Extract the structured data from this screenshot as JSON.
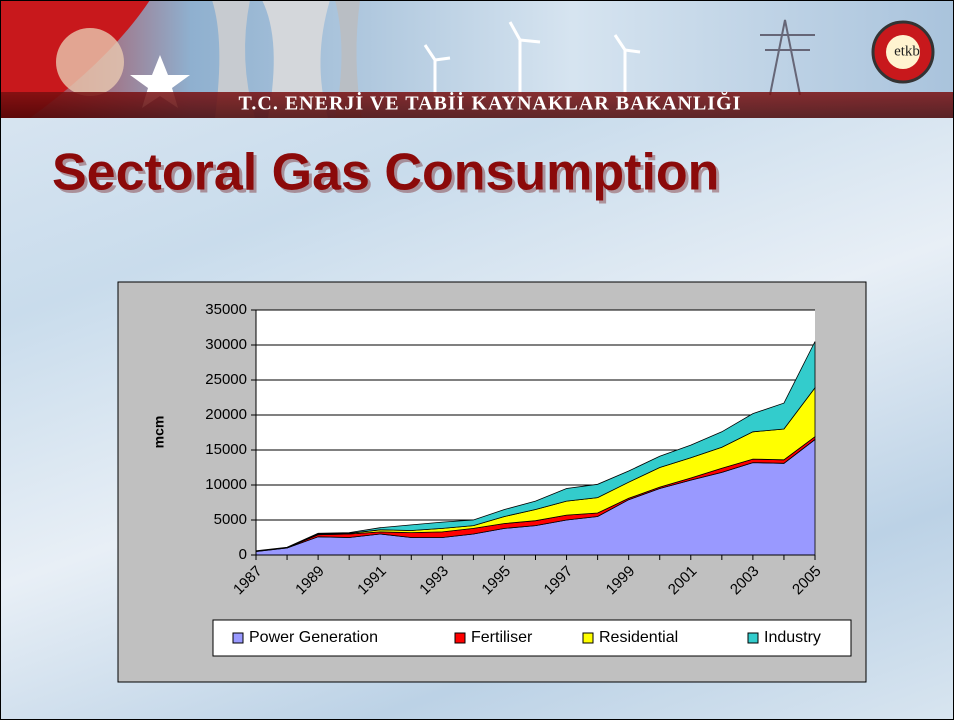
{
  "banner": {
    "title": "T.C. ENERJİ VE TABİİ KAYNAKLAR BAKANLIĞI",
    "logo": "etkb"
  },
  "slide_title": "Sectoral Gas Consumption",
  "chart_data": {
    "type": "stacked-area",
    "y_label": "mcm",
    "categories": [
      "1987",
      null,
      "1989",
      null,
      "1991",
      null,
      "1993",
      null,
      "1995",
      null,
      "1997",
      null,
      "1999",
      null,
      "2001",
      null,
      "2003",
      null,
      "2005"
    ],
    "series": [
      {
        "name": "Power Generation",
        "color": "#9999ff",
        "values": [
          500,
          1000,
          2600,
          2500,
          3000,
          2500,
          2500,
          3000,
          3800,
          4200,
          5000,
          5500,
          7900,
          9500,
          10700,
          11800,
          13200,
          13100,
          16500
        ]
      },
      {
        "name": "Fertiliser",
        "color": "#ff0000",
        "values": [
          50,
          50,
          300,
          500,
          300,
          700,
          800,
          800,
          700,
          700,
          700,
          500,
          200,
          200,
          300,
          600,
          500,
          500,
          400
        ]
      },
      {
        "name": "Residential",
        "color": "#ffff00",
        "values": [
          0,
          0,
          100,
          100,
          300,
          300,
          500,
          400,
          1000,
          1600,
          2000,
          2200,
          2300,
          2800,
          2900,
          3000,
          3900,
          4400,
          7000
        ]
      },
      {
        "name": "Industry",
        "color": "#33cccc",
        "values": [
          50,
          50,
          100,
          100,
          300,
          800,
          900,
          800,
          1000,
          1200,
          1800,
          1900,
          1600,
          1600,
          1800,
          2200,
          2600,
          3700,
          6600
        ]
      }
    ],
    "ylim": [
      0,
      35000
    ],
    "yticks": [
      0,
      5000,
      10000,
      15000,
      20000,
      25000,
      30000,
      35000
    ],
    "grid": true,
    "legend": "bottom"
  }
}
